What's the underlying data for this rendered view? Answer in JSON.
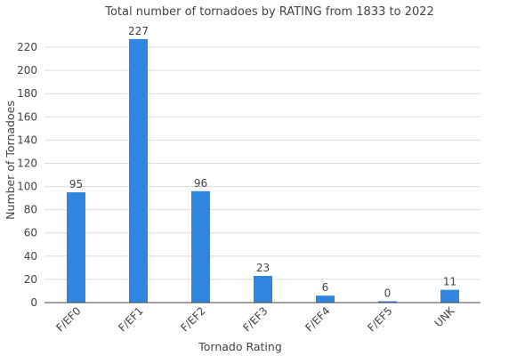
{
  "chart_data": {
    "type": "bar",
    "title": "Total number of tornadoes by RATING from 1833 to 2022",
    "xlabel": "Tornado Rating",
    "ylabel": "Number of Tornadoes",
    "categories": [
      "F/EF0",
      "F/EF1",
      "F/EF2",
      "F/EF3",
      "F/EF4",
      "F/EF5",
      "UNK"
    ],
    "values": [
      95,
      227,
      96,
      23,
      6,
      0,
      11
    ],
    "data_labels": [
      "95",
      "227",
      "96",
      "23",
      "6",
      "0",
      "11"
    ],
    "ylim": [
      0,
      230
    ],
    "yticks": [
      0,
      20,
      40,
      60,
      80,
      100,
      120,
      140,
      160,
      180,
      200,
      220
    ],
    "grid": true,
    "legend": "none",
    "bar_color": "#2e86de"
  }
}
